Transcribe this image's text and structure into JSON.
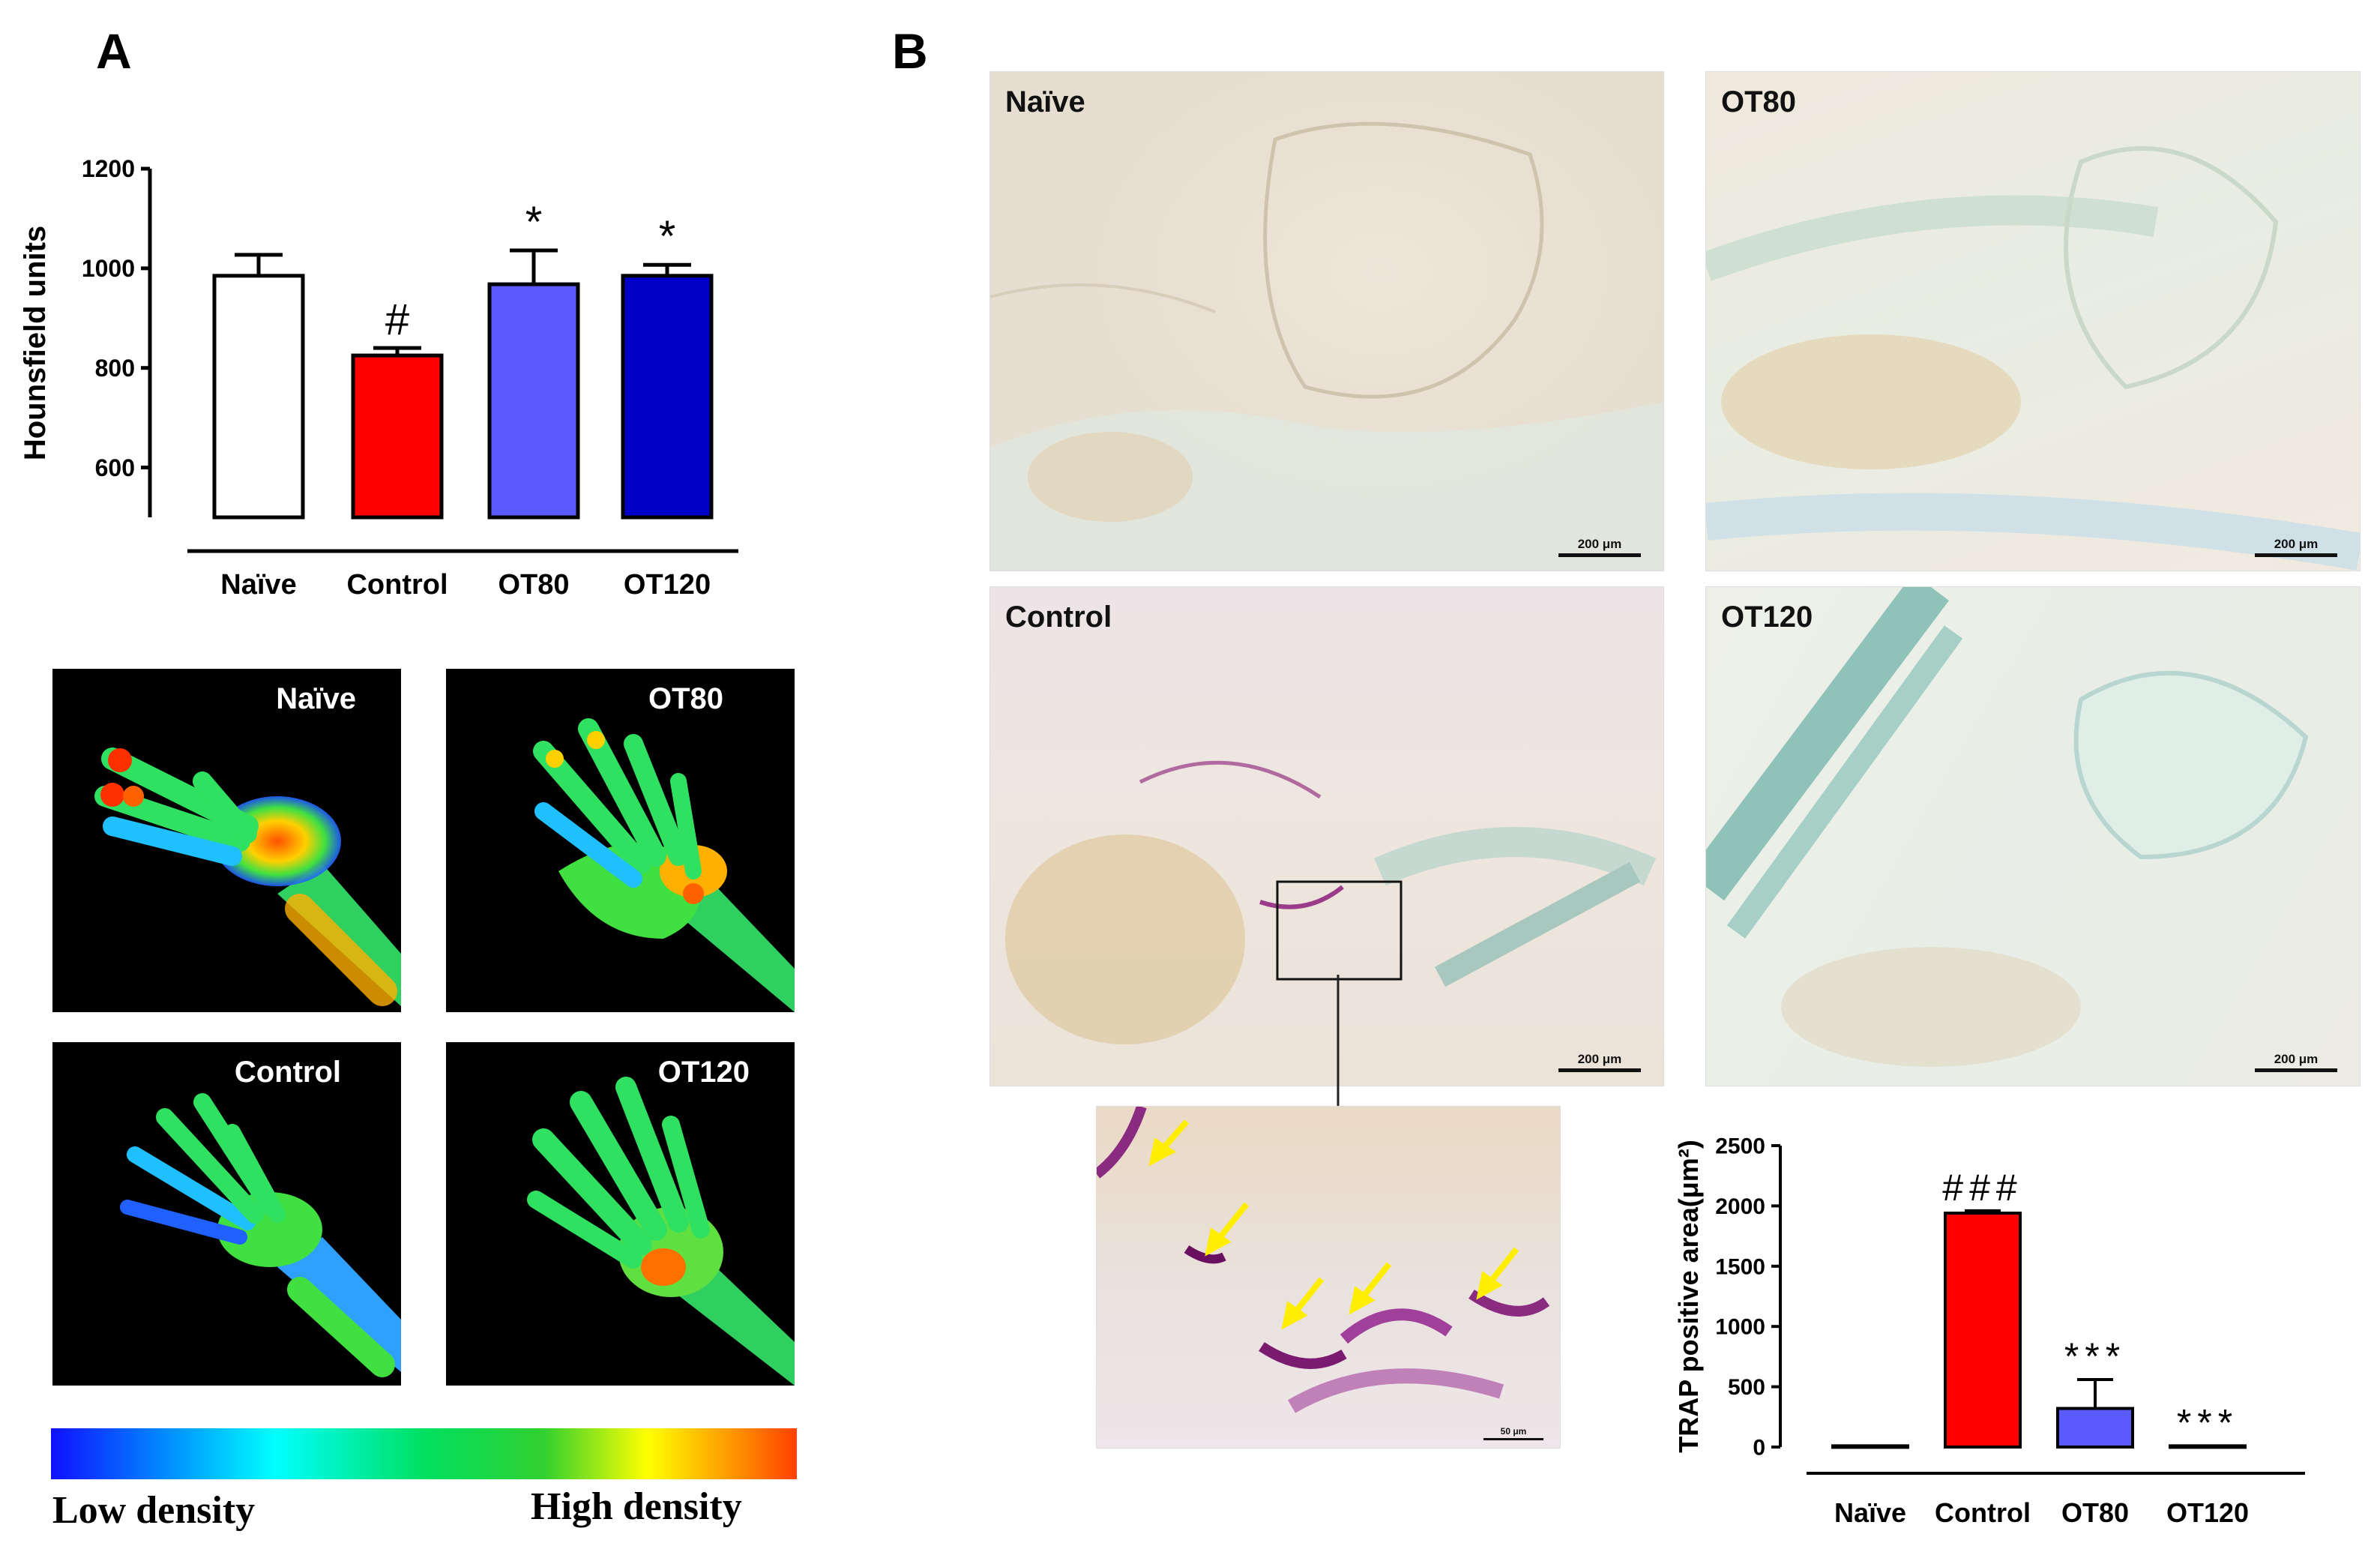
{
  "panels": {
    "a": "A",
    "b": "B"
  },
  "chart_data": [
    {
      "type": "bar",
      "ylabel": "Hounsfield units",
      "categories": [
        "Naïve",
        "Control",
        "OT80",
        "OT120"
      ],
      "values": [
        985,
        825,
        968,
        985
      ],
      "errors": [
        42,
        15,
        68,
        22
      ],
      "colors": [
        "#ffffff",
        "#ff0000",
        "#5a5aff",
        "#0000c8"
      ],
      "annotations": [
        "",
        "#",
        "*",
        "*"
      ],
      "ylim": [
        500,
        1200
      ],
      "yticks": [
        600,
        800,
        1000,
        1200
      ]
    },
    {
      "type": "bar",
      "ylabel": "TRAP positive area(μm²)",
      "categories": [
        "Naïve",
        "Control",
        "OT80",
        "OT120"
      ],
      "values": [
        10,
        1940,
        320,
        10
      ],
      "errors": [
        0,
        20,
        240,
        0
      ],
      "colors": [
        "#ffffff",
        "#ff0000",
        "#5a5aff",
        "#0000c8"
      ],
      "annotations": [
        "",
        "###",
        "***",
        "***"
      ],
      "ylim": [
        0,
        2500
      ],
      "yticks": [
        0,
        500,
        1000,
        1500,
        2000,
        2500
      ]
    }
  ],
  "scans": {
    "naive": "Naïve",
    "ot80": "OT80",
    "control": "Control",
    "ot120": "OT120"
  },
  "density_legend": {
    "low": "Low density",
    "high": "High density"
  },
  "histology": {
    "naive": "Naïve",
    "ot80": "OT80",
    "control": "Control",
    "ot120": "OT120",
    "scale_200": "200 μm",
    "scale_50": "50 μm"
  }
}
